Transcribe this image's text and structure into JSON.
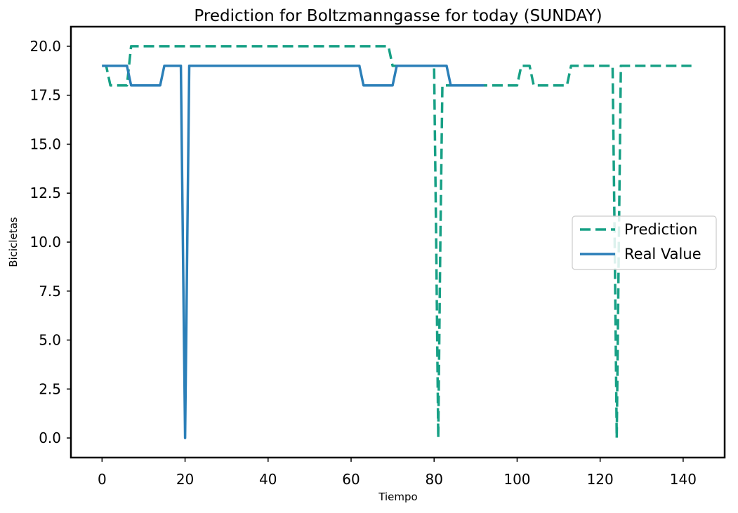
{
  "chart_data": {
    "type": "line",
    "title": "Prediction for Boltzmanngasse for today (SUNDAY)",
    "xlabel": "Tiempo",
    "ylabel": "Bicicletas",
    "xlim": [
      -7.5,
      150
    ],
    "ylim": [
      -1.0,
      21.0
    ],
    "x_ticks": [
      0,
      20,
      40,
      60,
      80,
      100,
      120,
      140
    ],
    "y_ticks": [
      0.0,
      2.5,
      5.0,
      7.5,
      10.0,
      12.5,
      15.0,
      17.5,
      20.0
    ],
    "x_tick_labels": [
      "0",
      "20",
      "40",
      "60",
      "80",
      "100",
      "120",
      "140"
    ],
    "y_tick_labels": [
      "0.0",
      "2.5",
      "5.0",
      "7.5",
      "10.0",
      "12.5",
      "15.0",
      "17.5",
      "20.0"
    ],
    "grid": false,
    "legend_position": "center-right",
    "series": [
      {
        "name": "Prediction",
        "color": "#17a085",
        "style": "dashed",
        "x": [
          0,
          1,
          2,
          5,
          6,
          7,
          69,
          70,
          80,
          80.5,
          81,
          81.5,
          82,
          100,
          101,
          103,
          104,
          112,
          113,
          123,
          123.5,
          124,
          124.5,
          125,
          142
        ],
        "y": [
          19,
          19,
          18,
          18,
          18,
          20,
          20,
          19,
          19,
          10,
          0,
          10,
          18,
          18,
          19,
          19,
          18,
          18,
          19,
          19,
          10,
          0,
          10,
          19,
          19
        ]
      },
      {
        "name": "Real Value",
        "color": "#2b7fb8",
        "style": "solid",
        "x": [
          0,
          6,
          7,
          14,
          15,
          19,
          20,
          21,
          62,
          63,
          70,
          71,
          83,
          84,
          92
        ],
        "y": [
          19,
          19,
          18,
          18,
          19,
          19,
          0,
          19,
          19,
          18,
          18,
          19,
          19,
          18,
          18
        ]
      }
    ]
  }
}
